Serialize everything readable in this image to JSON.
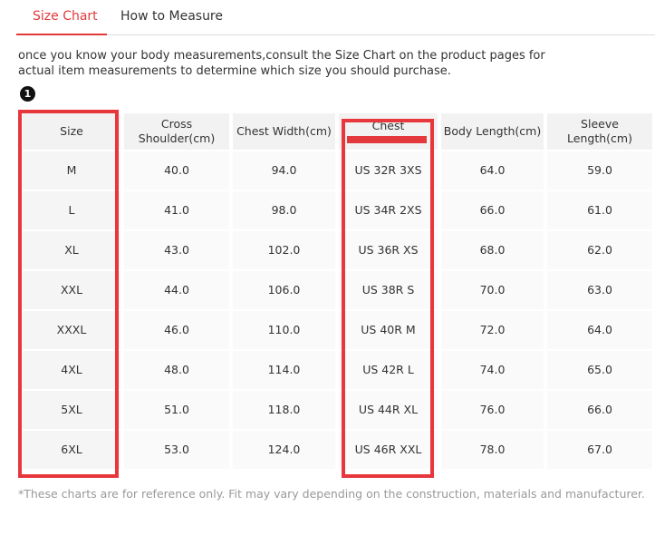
{
  "tabs": [
    "Size Chart",
    "How to Measure"
  ],
  "intro": "once you know your body measurements,consult the Size Chart on the product pages for actual item measurements to determine which size you should purchase.",
  "badge": "1",
  "table": {
    "header": [
      "Size",
      "Cross Shoulder(cm)",
      "Chest Width(cm)",
      "Chest",
      "Body Length(cm)",
      "Sleeve Length(cm)"
    ],
    "rows": [
      [
        "M",
        "40.0",
        "94.0",
        "US 32R 3XS",
        "64.0",
        "59.0"
      ],
      [
        "L",
        "41.0",
        "98.0",
        "US 34R 2XS",
        "66.0",
        "61.0"
      ],
      [
        "XL",
        "43.0",
        "102.0",
        "US 36R XS",
        "68.0",
        "62.0"
      ],
      [
        "XXL",
        "44.0",
        "106.0",
        "US 38R S",
        "70.0",
        "63.0"
      ],
      [
        "XXXL",
        "46.0",
        "110.0",
        "US 40R M",
        "72.0",
        "64.0"
      ],
      [
        "4XL",
        "48.0",
        "114.0",
        "US 42R L",
        "74.0",
        "65.0"
      ],
      [
        "5XL",
        "51.0",
        "118.0",
        "US 44R XL",
        "76.0",
        "66.0"
      ],
      [
        "6XL",
        "53.0",
        "124.0",
        "US 46R XXL",
        "78.0",
        "67.0"
      ]
    ]
  },
  "footnote": "*These charts are for reference only. Fit may vary depending on the construction, materials and manufacturer."
}
